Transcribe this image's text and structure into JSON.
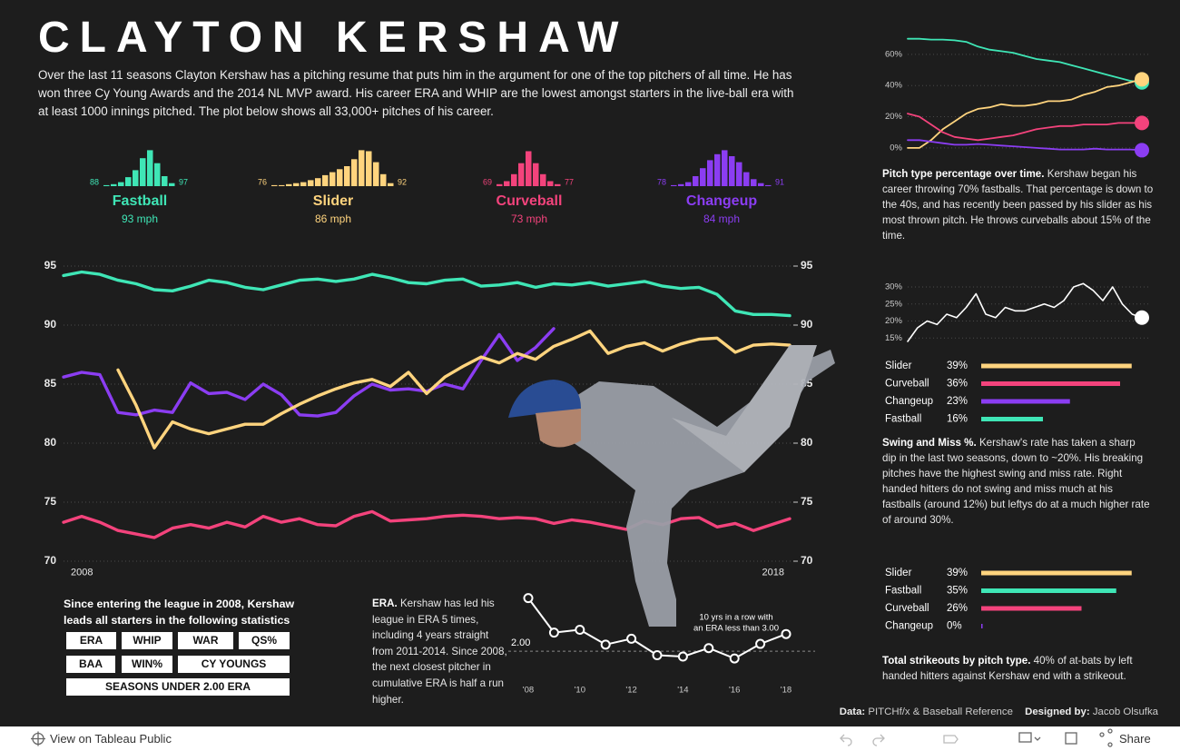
{
  "header": {
    "title": "CLAYTON KERSHAW",
    "intro": "Over the last 11 seasons Clayton Kershaw has a pitching resume that puts him in the argument for one of the top pitchers of all time. He has won three Cy Young Awards and the 2014 NL MVP award. His career ERA and WHIP are the lowest amongst starters in the live-ball era with at least 1000 innings pitched. The plot below shows all 33,000+ pitches of his career."
  },
  "chart_data": [
    {
      "type": "line",
      "grid": true,
      "categories": [
        "2008",
        null,
        null,
        null,
        null,
        null,
        null,
        null,
        null,
        null,
        null,
        null,
        null,
        null,
        null,
        null,
        null,
        null,
        null,
        null,
        null,
        null,
        null,
        null,
        null,
        null,
        null,
        null,
        null,
        null,
        null,
        null,
        null,
        null,
        null,
        null,
        null,
        null,
        null,
        null,
        "2018"
      ],
      "ylim": [
        69.5,
        97
      ],
      "yticks": [
        70,
        75,
        80,
        85,
        90,
        95
      ],
      "series": [
        {
          "name": "Fastball",
          "speed": "93 mph",
          "color": "#3fe6b6",
          "values": [
            94.2,
            94.5,
            94.3,
            93.8,
            93.5,
            93.0,
            92.9,
            93.3,
            93.8,
            93.6,
            93.2,
            93.0,
            93.4,
            93.8,
            93.9,
            93.7,
            93.9,
            94.3,
            94.0,
            93.6,
            93.5,
            93.8,
            93.9,
            93.3,
            93.4,
            93.6,
            93.2,
            93.5,
            93.4,
            93.6,
            93.3,
            93.5,
            93.7,
            93.3,
            93.1,
            93.2,
            92.6,
            91.2,
            90.9,
            90.9,
            90.8
          ],
          "histogram": {
            "categories": [
              "88",
              null,
              null,
              null,
              null,
              null,
              null,
              null,
              null,
              "97"
            ],
            "values": [
              1,
              2,
              4,
              9,
              16,
              28,
              36,
              23,
              10,
              3
            ]
          }
        },
        {
          "name": "Slider",
          "speed": "86 mph",
          "color": "#ffd47e",
          "values": [
            null,
            null,
            null,
            86.2,
            83.2,
            79.6,
            81.8,
            81.2,
            80.8,
            81.2,
            81.6,
            81.6,
            82.5,
            83.3,
            84,
            84.6,
            85.1,
            85.4,
            84.8,
            86,
            84.2,
            85.6,
            86.5,
            87.3,
            86.8,
            87.6,
            87.1,
            88.2,
            88.8,
            89.5,
            87.6,
            88.2,
            88.5,
            87.8,
            88.4,
            88.8,
            88.9,
            87.7,
            88.3,
            88.4,
            88.3
          ],
          "histogram": {
            "categories": [
              "76",
              null,
              null,
              null,
              null,
              null,
              null,
              null,
              null,
              null,
              null,
              null,
              null,
              null,
              null,
              null,
              "92"
            ],
            "values": [
              1,
              1,
              2,
              3,
              4,
              6,
              8,
              11,
              14,
              17,
              20,
              27,
              36,
              35,
              24,
              12,
              3
            ]
          }
        },
        {
          "name": "Curveball",
          "speed": "73 mph",
          "color": "#f3437c",
          "values": [
            73.3,
            73.8,
            73.3,
            72.6,
            72.3,
            72.0,
            72.8,
            73.1,
            72.8,
            73.3,
            72.9,
            73.8,
            73.3,
            73.6,
            73.1,
            73.0,
            73.8,
            74.2,
            73.4,
            73.5,
            73.6,
            73.8,
            73.9,
            73.8,
            73.6,
            73.7,
            73.6,
            73.2,
            73.5,
            73.3,
            73.0,
            72.7,
            73.4,
            73.1,
            73.6,
            73.7,
            72.9,
            73.2,
            72.6,
            73.1,
            73.6
          ],
          "histogram": {
            "categories": [
              "69",
              null,
              null,
              null,
              null,
              null,
              null,
              null,
              "77"
            ],
            "values": [
              2,
              5,
              12,
              23,
              35,
              23,
              12,
              5,
              2
            ]
          }
        },
        {
          "name": "Changeup",
          "speed": "84 mph",
          "color": "#8b3df2",
          "values": [
            85.6,
            86.0,
            85.8,
            82.6,
            82.4,
            82.8,
            82.6,
            85.1,
            84.2,
            84.3,
            83.7,
            85.0,
            84.1,
            82.4,
            82.3,
            82.6,
            84.0,
            85.0,
            84.5,
            84.6,
            84.4,
            85.0,
            84.6,
            87.0,
            89.2,
            87.0,
            88.1,
            89.7,
            null,
            null,
            null,
            null,
            null,
            null,
            null,
            null,
            null,
            null,
            null,
            null,
            null
          ],
          "histogram": {
            "categories": [
              "78",
              null,
              null,
              null,
              null,
              null,
              null,
              null,
              null,
              null,
              null,
              null,
              null,
              "91"
            ],
            "values": [
              1,
              2,
              4,
              10,
              18,
              26,
              32,
              36,
              30,
              24,
              14,
              7,
              3,
              1
            ]
          }
        }
      ]
    },
    {
      "type": "line",
      "grid": true,
      "ylim": [
        -3,
        70
      ],
      "yticks": [
        {
          "value": 0,
          "label": "0%"
        },
        {
          "value": 20,
          "label": "20%"
        },
        {
          "value": 40,
          "label": "40%"
        },
        {
          "value": 60,
          "label": "60%"
        }
      ],
      "caption_lead": "Pitch type percentage over time.",
      "caption": "Kershaw began his career throwing 70% fastballs. That percentage is down to the 40s, and has recently been passed by his slider as his most thrown pitch. He throws curveballs about 15% of the time.",
      "series": [
        {
          "color": "#3fe6b6",
          "values": [
            70,
            70,
            69.5,
            69.5,
            69,
            68,
            65,
            63,
            62,
            61,
            59,
            57,
            56,
            55,
            53,
            51,
            49,
            47,
            45,
            43,
            42
          ]
        },
        {
          "color": "#ffd47e",
          "values": [
            0,
            0,
            5,
            12,
            17,
            22,
            25,
            26,
            28,
            27,
            27,
            28,
            30,
            30,
            31,
            34,
            36,
            39,
            40,
            42,
            44
          ]
        },
        {
          "color": "#f3437c",
          "values": [
            22,
            20,
            15,
            10,
            7,
            6,
            5,
            6,
            7,
            8,
            10,
            12,
            13,
            14,
            14,
            15,
            15,
            15,
            16,
            16,
            16
          ]
        },
        {
          "color": "#8b3df2",
          "values": [
            5,
            5,
            4,
            3,
            2,
            2,
            2.5,
            2,
            1.5,
            1,
            0.5,
            0,
            -0.5,
            -1,
            -1,
            -1,
            -0.5,
            -1,
            -1,
            -1,
            -1.5
          ]
        }
      ]
    },
    {
      "type": "line",
      "grid": true,
      "ylim": [
        14,
        32
      ],
      "color": "#ffffff",
      "yticks": [
        {
          "value": 15,
          "label": "15%"
        },
        {
          "value": 20,
          "label": "20%"
        },
        {
          "value": 25,
          "label": "25%"
        },
        {
          "value": 30,
          "label": "30%"
        }
      ],
      "values": [
        14,
        18,
        20,
        19,
        22,
        21,
        24,
        28,
        22,
        21,
        24,
        23,
        23,
        24,
        25,
        24,
        26,
        30,
        31,
        29,
        26,
        30,
        25,
        22,
        21
      ]
    },
    {
      "type": "barh",
      "xlim": [
        0,
        40
      ],
      "categories": [
        "Slider",
        "Curveball",
        "Changeup",
        "Fastball"
      ],
      "values": [
        39,
        36,
        23,
        16
      ],
      "value_labels": [
        "39%",
        "36%",
        "23%",
        "16%"
      ],
      "colors": [
        "#ffd47e",
        "#f3437c",
        "#8b3df2",
        "#3fe6b6"
      ],
      "caption_lead": "Swing and Miss %.",
      "caption": "Kershaw's rate has taken a sharp dip in the last two seasons, down to ~20%. His breaking pitches have the highest swing and miss rate. Right handed hitters do not swing and miss much at his fastballs (around 12%) but leftys do at a much higher rate of around 30%."
    },
    {
      "type": "barh",
      "xlim": [
        0,
        40
      ],
      "categories": [
        "Slider",
        "Fastball",
        "Curveball",
        "Changeup"
      ],
      "values": [
        39,
        35,
        26,
        0
      ],
      "value_labels": [
        "39%",
        "35%",
        "26%",
        "0%"
      ],
      "colors": [
        "#ffd47e",
        "#3fe6b6",
        "#f3437c",
        "#8b3df2"
      ],
      "caption_lead": "Total strikeouts by pitch type.",
      "caption": "40% of at-bats by left handed hitters against Kershaw end with a strikeout."
    },
    {
      "type": "line",
      "ylim": [
        1.5,
        4.4
      ],
      "color": "#ffffff",
      "categories": [
        "'08",
        null,
        "'10",
        null,
        "'12",
        null,
        "'14",
        null,
        "'16",
        null,
        "'18"
      ],
      "values": [
        4.26,
        2.79,
        2.91,
        2.28,
        2.53,
        1.83,
        1.77,
        2.13,
        1.69,
        2.31,
        2.73
      ],
      "reference_line": {
        "value": 2.0,
        "label": "2.00"
      },
      "annotation": [
        "10 yrs in a row with",
        "an ERA less than 3.00"
      ],
      "caption_lead": "ERA.",
      "caption": "Kershaw has led his league in ERA 5 times, including 4 years straight from 2011-2014. Since 2008, the next closest pitcher in cumulative ERA is half a run higher."
    }
  ],
  "stats": {
    "heading": "Since entering the league in 2008, Kershaw leads all starters in the following statistics",
    "badges": [
      "ERA",
      "WHIP",
      "WAR",
      "QS%",
      "BAA",
      "WIN%",
      "CY YOUNGS",
      "SEASONS UNDER 2.00 ERA"
    ]
  },
  "footer": {
    "data_label": "Data:",
    "data_source": "PITCHf/x & Baseball Reference",
    "designer_label": "Designed by:",
    "designer": "Jacob Olsufka"
  },
  "toolbar": {
    "view": "View on Tableau Public",
    "share": "Share"
  }
}
